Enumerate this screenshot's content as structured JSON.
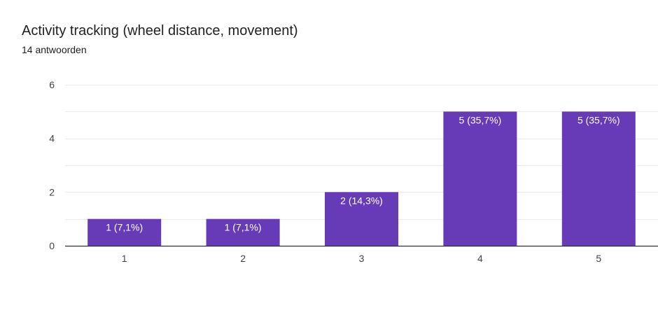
{
  "header": {
    "title": "Activity tracking (wheel distance, movement)",
    "subtitle": "14 antwoorden"
  },
  "chart_data": {
    "type": "bar",
    "title": "Activity tracking (wheel distance, movement)",
    "subtitle": "14 antwoorden",
    "categories": [
      "1",
      "2",
      "3",
      "4",
      "5"
    ],
    "values": [
      1,
      1,
      2,
      5,
      5
    ],
    "data_labels": [
      "1 (7,1%)",
      "1 (7,1%)",
      "2 (14,3%)",
      "5 (35,7%)",
      "5 (35,7%)"
    ],
    "y_ticks": [
      0,
      2,
      4,
      6
    ],
    "ylim": [
      0,
      6
    ],
    "grid": true,
    "bar_color": "#673ab7",
    "grid_color": "#ebebeb",
    "axis_color": "#333333"
  }
}
